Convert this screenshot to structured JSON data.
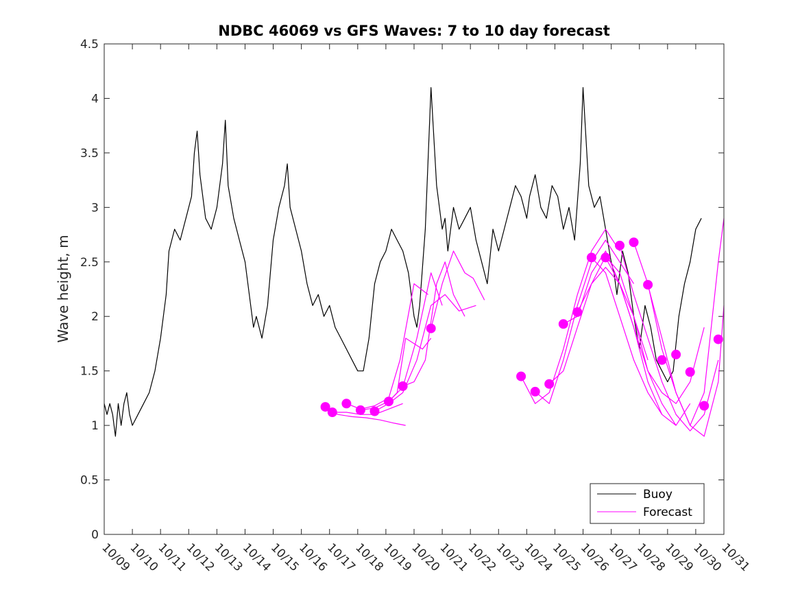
{
  "chart_data": {
    "type": "line",
    "title": "NDBC 46069 vs GFS Waves: 7 to 10 day forecast",
    "xlabel": "",
    "ylabel": "Wave height, m",
    "ylim": [
      0,
      4.5
    ],
    "yticks": [
      0,
      0.5,
      1,
      1.5,
      2,
      2.5,
      3,
      3.5,
      4,
      4.5
    ],
    "ytick_labels": [
      "0",
      "0.5",
      "1",
      "1.5",
      "2",
      "2.5",
      "3",
      "3.5",
      "4",
      "4.5"
    ],
    "xlim": [
      0,
      22
    ],
    "xtick_labels": [
      "10/09",
      "10/10",
      "10/11",
      "10/12",
      "10/13",
      "10/14",
      "10/15",
      "10/16",
      "10/17",
      "10/18",
      "10/19",
      "10/20",
      "10/21",
      "10/22",
      "10/23",
      "10/24",
      "10/25",
      "10/26",
      "10/27",
      "10/28",
      "10/29",
      "10/30",
      "10/31"
    ],
    "x_units": "days since 10/09 00:00",
    "grid": false,
    "legend_position": "bottom-right",
    "series": [
      {
        "name": "Buoy",
        "color": "#000000",
        "x": [
          0,
          0.1,
          0.2,
          0.3,
          0.4,
          0.5,
          0.6,
          0.7,
          0.8,
          0.9,
          1.0,
          1.2,
          1.4,
          1.6,
          1.8,
          2.0,
          2.1,
          2.2,
          2.3,
          2.5,
          2.7,
          2.9,
          3.1,
          3.2,
          3.3,
          3.4,
          3.6,
          3.8,
          4.0,
          4.2,
          4.3,
          4.4,
          4.6,
          4.8,
          5.0,
          5.2,
          5.3,
          5.4,
          5.6,
          5.8,
          6.0,
          6.2,
          6.4,
          6.5,
          6.6,
          6.8,
          7.0,
          7.2,
          7.4,
          7.6,
          7.8,
          8.0,
          8.2,
          8.4,
          8.6,
          8.8,
          9.0,
          9.2,
          9.4,
          9.6,
          9.8,
          10.0,
          10.2,
          10.4,
          10.6,
          10.8,
          11.0,
          11.1,
          11.2,
          11.4,
          11.6,
          11.8,
          12.0,
          12.1,
          12.2,
          12.4,
          12.6,
          12.8,
          13.0,
          13.2,
          13.4,
          13.6,
          13.8,
          14.0,
          14.2,
          14.4,
          14.6,
          14.8,
          15.0,
          15.1,
          15.3,
          15.5,
          15.7,
          15.9,
          16.1,
          16.3,
          16.5,
          16.7,
          16.9,
          17.0,
          17.2,
          17.4,
          17.6,
          17.8,
          18.0,
          18.1,
          18.2,
          18.4,
          18.6,
          18.8,
          19.0,
          19.2,
          19.4,
          19.6,
          19.8,
          20.0,
          20.2,
          20.4,
          20.6,
          20.8,
          21.0,
          21.2
        ],
        "y": [
          1.2,
          1.1,
          1.2,
          1.1,
          0.9,
          1.2,
          1.0,
          1.2,
          1.3,
          1.1,
          1.0,
          1.1,
          1.2,
          1.3,
          1.5,
          1.8,
          2.0,
          2.2,
          2.6,
          2.8,
          2.7,
          2.9,
          3.1,
          3.5,
          3.7,
          3.3,
          2.9,
          2.8,
          3.0,
          3.4,
          3.8,
          3.2,
          2.9,
          2.7,
          2.5,
          2.1,
          1.9,
          2.0,
          1.8,
          2.1,
          2.7,
          3.0,
          3.2,
          3.4,
          3.0,
          2.8,
          2.6,
          2.3,
          2.1,
          2.2,
          2.0,
          2.1,
          1.9,
          1.8,
          1.7,
          1.6,
          1.5,
          1.5,
          1.8,
          2.3,
          2.5,
          2.6,
          2.8,
          2.7,
          2.6,
          2.4,
          2.0,
          1.9,
          2.1,
          2.8,
          4.1,
          3.2,
          2.8,
          2.9,
          2.6,
          3.0,
          2.8,
          2.9,
          3.0,
          2.7,
          2.5,
          2.3,
          2.8,
          2.6,
          2.8,
          3.0,
          3.2,
          3.1,
          2.9,
          3.1,
          3.3,
          3.0,
          2.9,
          3.2,
          3.1,
          2.8,
          3.0,
          2.7,
          3.4,
          4.1,
          3.2,
          3.0,
          3.1,
          2.8,
          2.5,
          2.4,
          2.2,
          2.6,
          2.4,
          2.0,
          1.7,
          2.1,
          1.9,
          1.6,
          1.5,
          1.4,
          1.5,
          2.0,
          2.3,
          2.5,
          2.8,
          2.9
        ]
      },
      {
        "name": "Forecast",
        "color": "#ff00ff",
        "lines": [
          {
            "x": [
              7.85,
              8.3,
              8.8,
              9.3,
              9.8,
              10.3,
              10.7
            ],
            "y": [
              1.15,
              1.1,
              1.08,
              1.07,
              1.05,
              1.02,
              1.0
            ]
          },
          {
            "x": [
              8.1,
              8.6,
              9.1,
              9.6,
              10.1,
              10.6
            ],
            "y": [
              1.12,
              1.12,
              1.1,
              1.1,
              1.15,
              1.2
            ]
          },
          {
            "x": [
              8.6,
              9.1,
              9.6,
              10.1,
              10.5,
              11.0,
              11.5
            ],
            "y": [
              1.2,
              1.15,
              1.18,
              1.25,
              1.6,
              2.3,
              2.2
            ]
          },
          {
            "x": [
              9.1,
              9.6,
              10.1,
              10.6,
              11.1,
              11.6,
              12.0
            ],
            "y": [
              1.14,
              1.16,
              1.22,
              1.35,
              1.8,
              2.4,
              2.1
            ]
          },
          {
            "x": [
              9.6,
              10.1,
              10.6,
              11.1,
              11.6,
              12.1,
              12.6,
              13.2
            ],
            "y": [
              1.13,
              1.2,
              1.3,
              1.6,
              2.1,
              2.2,
              2.05,
              2.1
            ]
          },
          {
            "x": [
              10.1,
              10.4,
              10.7,
              11.0,
              11.3,
              11.6
            ],
            "y": [
              1.22,
              1.3,
              1.8,
              1.75,
              1.7,
              1.8
            ]
          },
          {
            "x": [
              10.6,
              11.0,
              11.4,
              11.8,
              12.1,
              12.4,
              12.8
            ],
            "y": [
              1.36,
              1.4,
              1.6,
              2.3,
              2.5,
              2.2,
              2.0
            ]
          },
          {
            "x": [
              11.6,
              12.0,
              12.4,
              12.8,
              13.1,
              13.5
            ],
            "y": [
              1.89,
              2.3,
              2.6,
              2.4,
              2.35,
              2.15
            ]
          },
          {
            "x": [
              14.8,
              15.3,
              15.8,
              16.3,
              16.8,
              17.3,
              17.8,
              18.3
            ],
            "y": [
              1.45,
              1.2,
              1.3,
              1.7,
              2.2,
              2.6,
              2.8,
              2.6
            ]
          },
          {
            "x": [
              15.3,
              15.8,
              16.3,
              16.8,
              17.3,
              17.8,
              18.3,
              18.8
            ],
            "y": [
              1.31,
              1.2,
              1.6,
              2.1,
              2.5,
              2.7,
              2.5,
              2.3
            ]
          },
          {
            "x": [
              15.8,
              16.3,
              16.8,
              17.3,
              17.8,
              18.3,
              18.8,
              19.3
            ],
            "y": [
              1.38,
              1.5,
              1.9,
              2.3,
              2.45,
              2.3,
              2.0,
              1.6
            ]
          },
          {
            "x": [
              16.3,
              16.8,
              17.3,
              17.8,
              18.3,
              18.8,
              19.3,
              19.8
            ],
            "y": [
              1.93,
              2.0,
              2.4,
              2.6,
              2.3,
              1.9,
              1.4,
              1.1
            ]
          },
          {
            "x": [
              16.8,
              17.3,
              17.8,
              18.3,
              18.8,
              19.3,
              19.8,
              20.3
            ],
            "y": [
              2.04,
              2.3,
              2.55,
              2.4,
              2.0,
              1.5,
              1.2,
              1.0
            ]
          },
          {
            "x": [
              17.3,
              17.8,
              18.3,
              18.8,
              19.3,
              19.8,
              20.3,
              20.8
            ],
            "y": [
              2.54,
              2.4,
              2.0,
              1.6,
              1.3,
              1.1,
              1.0,
              1.2
            ]
          },
          {
            "x": [
              17.8,
              18.3,
              18.8,
              19.3,
              19.8,
              20.3,
              20.8,
              21.3
            ],
            "y": [
              2.54,
              2.3,
              1.9,
              1.5,
              1.3,
              1.2,
              1.4,
              1.9
            ]
          },
          {
            "x": [
              18.3,
              18.8,
              19.3,
              19.8,
              20.3,
              20.8,
              21.3,
              21.8
            ],
            "y": [
              2.65,
              2.2,
              1.8,
              1.4,
              1.1,
              0.95,
              1.1,
              1.6
            ]
          },
          {
            "x": [
              18.8,
              19.3,
              19.8,
              20.3,
              20.8,
              21.3,
              21.8,
              22.0
            ],
            "y": [
              2.68,
              2.3,
              1.7,
              1.3,
              1.0,
              0.9,
              1.4,
              2.1
            ]
          },
          {
            "x": [
              19.3,
              19.8,
              20.3,
              20.8,
              21.3,
              21.8,
              22.0
            ],
            "y": [
              2.29,
              1.8,
              1.3,
              1.0,
              1.3,
              2.5,
              2.9
            ]
          }
        ],
        "markers": {
          "x": [
            7.85,
            8.1,
            8.6,
            9.1,
            9.6,
            10.1,
            10.6,
            11.6,
            14.8,
            15.3,
            15.8,
            16.3,
            16.8,
            17.3,
            17.8,
            18.3,
            18.8,
            19.3,
            19.8,
            20.3,
            20.8,
            21.3,
            21.8
          ],
          "y": [
            1.17,
            1.12,
            1.2,
            1.14,
            1.13,
            1.22,
            1.36,
            1.89,
            1.45,
            1.31,
            1.38,
            1.93,
            2.04,
            2.54,
            2.54,
            2.65,
            2.68,
            2.29,
            1.6,
            1.65,
            1.49,
            1.18,
            1.79
          ]
        }
      }
    ],
    "legend": [
      {
        "label": "Buoy",
        "color": "#000000"
      },
      {
        "label": "Forecast",
        "color": "#ff00ff"
      }
    ]
  }
}
